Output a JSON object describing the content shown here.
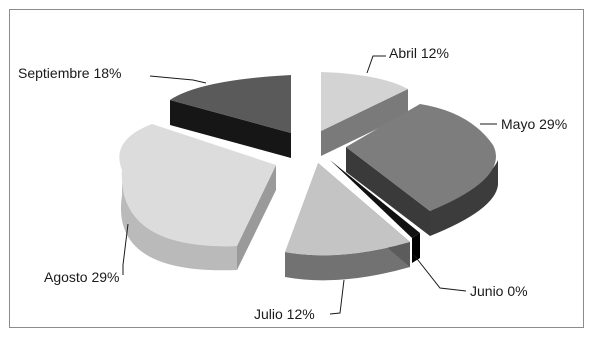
{
  "chart_data": {
    "type": "pie",
    "style": "3d-exploded",
    "legend": "none",
    "slices": [
      {
        "label": "Abril",
        "value": 12,
        "display": "Abril 12%",
        "color": "#d3d3d3",
        "side_color": "#7a7a7a"
      },
      {
        "label": "Mayo",
        "value": 29,
        "display": "Mayo 29%",
        "color": "#7d7d7d",
        "side_color": "#3c3c3c"
      },
      {
        "label": "Junio",
        "value": 0,
        "display": "Junio 0%",
        "color": "#111111",
        "side_color": "#000000"
      },
      {
        "label": "Julio",
        "value": 12,
        "display": "Julio 12%",
        "color": "#c4c4c4",
        "side_color": "#727272"
      },
      {
        "label": "Agosto",
        "value": 29,
        "display": "Agosto 29%",
        "color": "#dcdcdc",
        "side_color": "#a4a4a4"
      },
      {
        "label": "Septiembre",
        "value": 18,
        "display": "Septiembre 18%",
        "color": "#5a5a5a",
        "side_color": "#1e1e1e"
      }
    ]
  }
}
